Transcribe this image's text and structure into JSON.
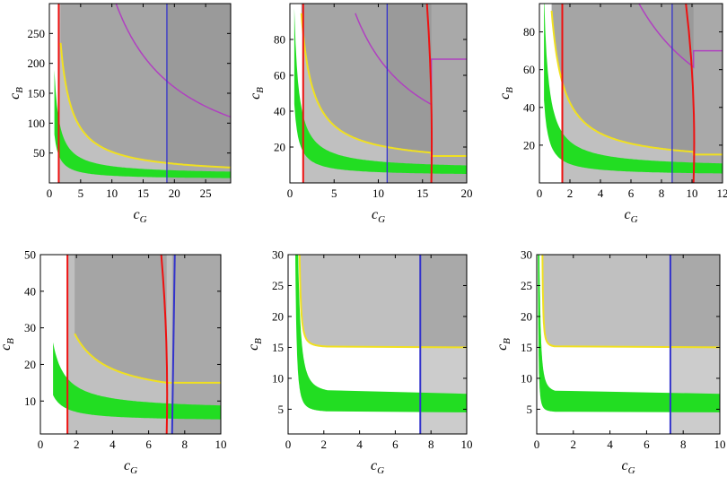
{
  "chart_data": [
    {
      "type": "region-plot",
      "panel": "top-left",
      "xlabel": "c_G",
      "ylabel": "c_B",
      "xlim": [
        0,
        29
      ],
      "ylim": [
        0,
        300
      ],
      "xticks": [
        "0",
        "5",
        "10",
        "15",
        "20",
        "25"
      ],
      "yticks": [
        "50",
        "100",
        "150",
        "200",
        "250"
      ],
      "green_band": {
        "k_low": 60,
        "k_high": 140,
        "floor_low": 6,
        "floor_high": 14,
        "x_start": 0.8
      },
      "yellow": {
        "k": 400,
        "floor": 12,
        "x_start": 1.8
      },
      "red_line": {
        "type": "vline",
        "x": 1.5
      },
      "blue_line": {
        "type": "vline",
        "x": 18.8
      },
      "magenta": {
        "k": 3200,
        "floor": 0,
        "x_start": 8
      }
    },
    {
      "type": "region-plot",
      "panel": "top-middle",
      "xlabel": "c_G",
      "ylabel": "c_B",
      "xlim": [
        0,
        20
      ],
      "ylim": [
        0,
        100
      ],
      "xticks": [
        "0",
        "5",
        "10",
        "15",
        "20"
      ],
      "yticks": [
        "20",
        "40",
        "60",
        "80"
      ],
      "green_band": {
        "k_low": 20,
        "k_high": 45,
        "floor_low": 4,
        "floor_high": 7.5,
        "x_start": 0.5
      },
      "yellow": {
        "k": 110,
        "floor": 10,
        "x_start": 1.3,
        "x_end": 16,
        "step_y": 15
      },
      "red_line": {
        "type": "vcurve",
        "x": 1.5,
        "x2": 16,
        "bend": 0.5
      },
      "blue_line": {
        "type": "vline",
        "x": 11
      },
      "magenta": {
        "k": 700,
        "x_start": 7.4,
        "x_end": 16,
        "step_y": 69
      }
    },
    {
      "type": "region-plot",
      "panel": "top-right",
      "xlabel": "c_G",
      "ylabel": "c_B",
      "xlim": [
        0,
        12
      ],
      "ylim": [
        0,
        95
      ],
      "xticks": [
        "0",
        "2",
        "4",
        "6",
        "8",
        "10",
        "12"
      ],
      "yticks": [
        "20",
        "40",
        "60",
        "80"
      ],
      "green_band": {
        "k_low": 12,
        "k_high": 28,
        "floor_low": 4,
        "floor_high": 8,
        "x_start": 0.3
      },
      "yellow": {
        "k": 65,
        "floor": 10,
        "x_start": 0.8,
        "x_end": 10.1,
        "step_y": 15
      },
      "red_line": {
        "type": "vcurve",
        "x": 1.5,
        "x2": 10.1,
        "bend": 0.5
      },
      "blue_line": {
        "type": "vline",
        "x": 8.7
      },
      "magenta": {
        "k": 620,
        "x_start": 6.5,
        "x_end": 10.1,
        "step_y": 70
      }
    },
    {
      "type": "region-plot",
      "panel": "bottom-left",
      "xlabel": "c_G",
      "ylabel": "c_B",
      "xlim": [
        0,
        10
      ],
      "ylim": [
        1,
        50
      ],
      "xticks": [
        "0",
        "2",
        "4",
        "6",
        "8",
        "10"
      ],
      "yticks": [
        "10",
        "20",
        "30",
        "40",
        "50"
      ],
      "green_band": {
        "k_low": 5,
        "k_high": 13,
        "floor_low": 4.5,
        "floor_high": 7.5,
        "x_start": 0.7
      },
      "yellow": {
        "k": 35,
        "floor": 10,
        "x_start": 1.9,
        "x_end": 7,
        "step_y": 15
      },
      "red_line": {
        "type": "vcurve",
        "x": 1.5,
        "x2": 7.0,
        "bend": 0.3
      },
      "blue_line": {
        "type": "vline",
        "x": 7.3,
        "lean": 0.15
      }
    },
    {
      "type": "region-plot",
      "panel": "bottom-middle",
      "xlabel": "c_G",
      "ylabel": "c_B",
      "xlim": [
        0,
        10
      ],
      "ylim": [
        1,
        30
      ],
      "xticks": [
        "0",
        "2",
        "4",
        "6",
        "8",
        "10"
      ],
      "yticks": [
        "5",
        "10",
        "15",
        "20",
        "25",
        "30"
      ],
      "green_band": {
        "k_low": 0.6,
        "k_high": 2.2,
        "floor_low": 4.5,
        "floor_high": 7.5,
        "x_start": 0.3,
        "x_knee": 2.2
      },
      "yellow": {
        "k": 0.4,
        "floor": 15,
        "x_start": 0.5,
        "x_knee": 2.2,
        "flat_y": 15
      },
      "blue_line": {
        "type": "vline",
        "x": 7.4
      }
    },
    {
      "type": "region-plot",
      "panel": "bottom-right",
      "xlabel": "c_G",
      "ylabel": "c_B",
      "xlim": [
        0,
        10
      ],
      "ylim": [
        1,
        30
      ],
      "xticks": [
        "0",
        "2",
        "4",
        "6",
        "8",
        "10"
      ],
      "yticks": [
        "5",
        "10",
        "15",
        "20",
        "25",
        "30"
      ],
      "green_band": {
        "k_low": 0.1,
        "k_high": 0.5,
        "floor_low": 4.5,
        "floor_high": 7.5,
        "x_start": 0.05,
        "x_knee": 1
      },
      "yellow": {
        "k": 0.1,
        "floor": 15,
        "x_start": 0.25,
        "x_knee": 1,
        "flat_y": 15
      },
      "blue_line": {
        "type": "vline",
        "x": 7.3
      }
    }
  ],
  "colors": {
    "light_gray": "#c0c0c0",
    "mid_gray": "#a5a5a5",
    "dark_gray": "#8e8e8e",
    "green": "#22dd22",
    "yellow": "#f0e020",
    "red": "#ee1111",
    "blue": "#3333cc",
    "magenta": "#b040c0"
  }
}
